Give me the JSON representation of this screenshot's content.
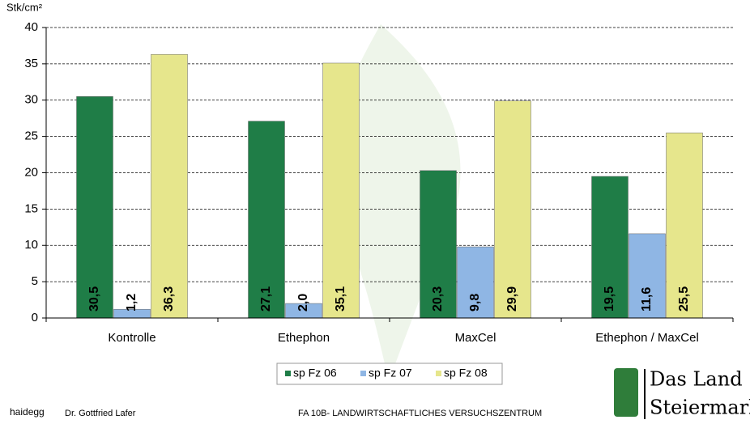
{
  "chart_data": {
    "type": "bar",
    "y_label": "Stk/cm²",
    "categories": [
      "Kontrolle",
      "Ethephon",
      "MaxCel",
      "Ethephon / MaxCel"
    ],
    "series": [
      {
        "name": "sp Fz 06",
        "color": "#1f7d47",
        "values": [
          30.5,
          27.1,
          20.3,
          19.5
        ],
        "value_labels": [
          "30,5",
          "27,1",
          "20,3",
          "19,5"
        ]
      },
      {
        "name": "sp Fz 07",
        "color": "#8fb6e4",
        "values": [
          1.2,
          2.0,
          9.8,
          11.6
        ],
        "value_labels": [
          "1,2",
          "2,0",
          "9,8",
          "11,6"
        ]
      },
      {
        "name": "sp Fz 08",
        "color": "#e6e68c",
        "values": [
          36.3,
          35.1,
          29.9,
          25.5
        ],
        "value_labels": [
          "36,3",
          "35,1",
          "29,9",
          "25,5"
        ]
      }
    ],
    "ylim": [
      0,
      40
    ],
    "yticks": [
      0,
      5,
      10,
      15,
      20,
      25,
      30,
      35,
      40
    ],
    "grid": true
  },
  "footer": {
    "logo_left": "haidegg",
    "author": "Dr. Gottfried Lafer",
    "institution": "FA 10B- LANDWIRTSCHAFTLICHES VERSUCHSZENTRUM",
    "logo_right_1": "Das Land",
    "logo_right_2": "Steiermark"
  }
}
